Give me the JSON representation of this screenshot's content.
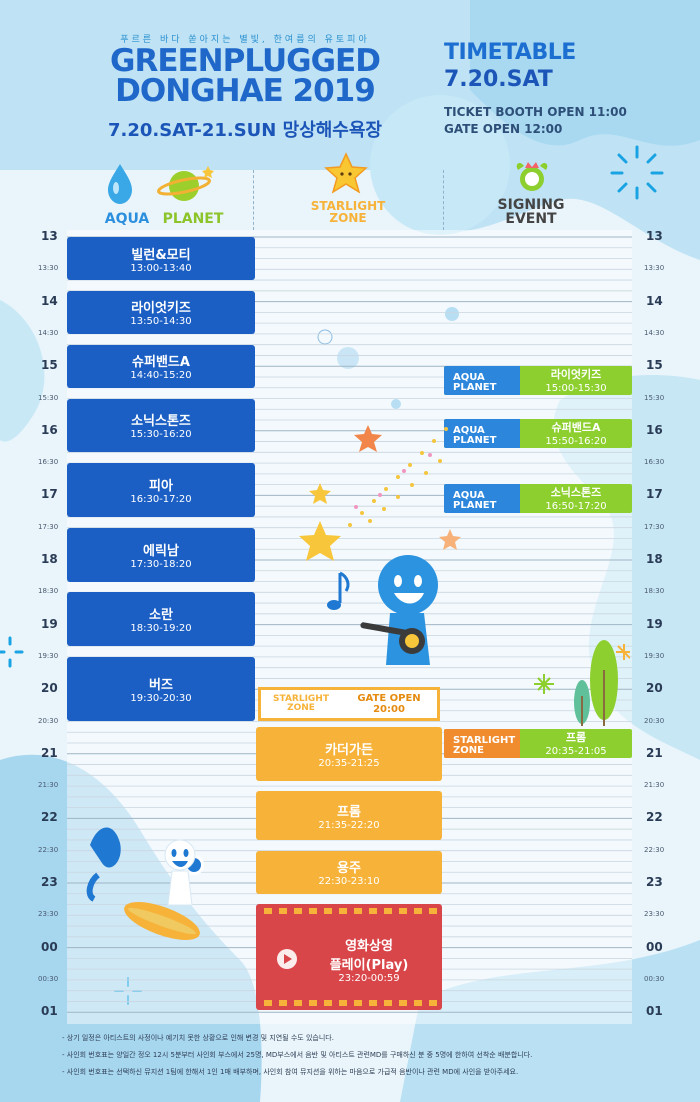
{
  "header": {
    "tagline": "푸르른 바다 쏟아지는 별빛, 한여름의 유토피아",
    "title_line1": "GREENPLUGGED",
    "title_line2": "DONGHAE 2019",
    "dates": "7.20.SAT-21.SUN 망상해수욕장",
    "timetable_label": "TIMETABLE",
    "timetable_date": "7.20.SAT",
    "ticket_booth": "TICKET BOOTH OPEN 11:00",
    "gate_open": "GATE OPEN 12:00"
  },
  "zones": {
    "aqua": "AQUA",
    "planet": "PLANET",
    "starlight_1": "STARLIGHT",
    "starlight_2": "ZONE",
    "signing_1": "SIGNING",
    "signing_2": "EVENT"
  },
  "hours": [
    "13",
    "14",
    "15",
    "16",
    "17",
    "18",
    "19",
    "20",
    "21",
    "22",
    "23",
    "00",
    "01"
  ],
  "half_hours": [
    "13:30",
    "14:30",
    "15:30",
    "16:30",
    "17:30",
    "18:30",
    "19:30",
    "20:30",
    "21:30",
    "22:30",
    "23:30",
    "00:30"
  ],
  "aqua_planet": [
    {
      "name": "빌런&모티",
      "time": "13:00-13:40"
    },
    {
      "name": "라이엇키즈",
      "time": "13:50-14:30"
    },
    {
      "name": "슈퍼밴드A",
      "time": "14:40-15:20"
    },
    {
      "name": "소닉스톤즈",
      "time": "15:30-16:20"
    },
    {
      "name": "피아",
      "time": "16:30-17:20"
    },
    {
      "name": "에릭남",
      "time": "17:30-18:20"
    },
    {
      "name": "소란",
      "time": "18:30-19:20"
    },
    {
      "name": "버즈",
      "time": "19:30-20:30"
    }
  ],
  "starlight_gate": {
    "label_1": "STARLIGHT",
    "label_2": "ZONE",
    "gate": "GATE OPEN",
    "time": "20:00"
  },
  "starlight": [
    {
      "name": "카더가든",
      "time": "20:35-21:25"
    },
    {
      "name": "프롬",
      "time": "21:35-22:20"
    },
    {
      "name": "용주",
      "time": "22:30-23:10"
    }
  ],
  "movie": {
    "name": "영화상영",
    "title": "플레이(Play)",
    "time": "23:20-00:59"
  },
  "signing": [
    {
      "tag_1": "AQUA",
      "tag_2": "PLANET",
      "name": "라이엇키즈",
      "time": "15:00-15:30"
    },
    {
      "tag_1": "AQUA",
      "tag_2": "PLANET",
      "name": "슈퍼밴드A",
      "time": "15:50-16:20"
    },
    {
      "tag_1": "AQUA",
      "tag_2": "PLANET",
      "name": "소닉스톤즈",
      "time": "16:50-17:20"
    },
    {
      "tag_1": "STARLIGHT",
      "tag_2": "ZONE",
      "name": "프롬",
      "time": "20:35-21:05"
    }
  ],
  "notes": [
    "- 상기 일정은 아티스트의 사정이나 예기치 못한 상황으로 인해 변경 및 지연될 수도 있습니다.",
    "- 사인회 번호표는 양일간 정오 12시 5분부터 사인회 부스에서 25명, MD부스에서 음반 및 아티스트 관련MD를 구매하신 분 중 5명에 한하여 선착순 배분합니다.",
    "- 사인회 번호표는 선택하신 뮤지션 1팀에 한해서 1인 1매 배부하며, 사인회 참여 뮤지션을 위하는 마음으로 가급적 음반이나 관련 MD에 사인을 받아주세요."
  ],
  "colors": {
    "blue": "#1b5fc4",
    "orange": "#f7b339",
    "green": "#8ccf2e",
    "red": "#d9464a",
    "sky": "#e7f4fb"
  }
}
